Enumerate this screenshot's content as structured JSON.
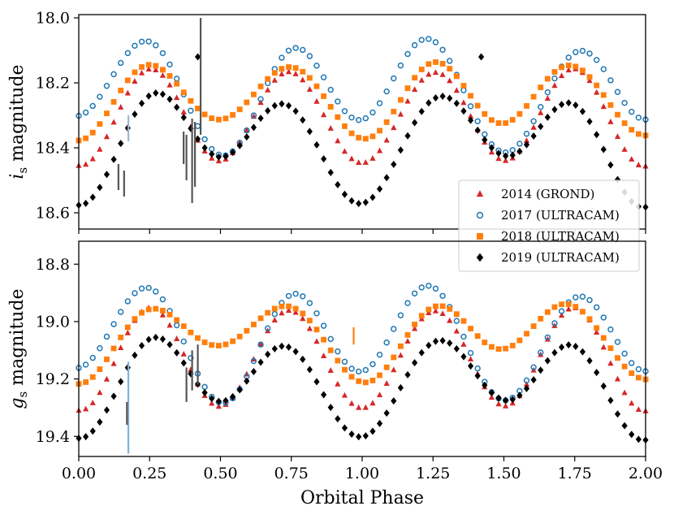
{
  "chart_data": [
    {
      "type": "scatter",
      "panel": "top",
      "ylabel_symbol": "i",
      "ylabel_subscript": "s",
      "ylabel_text": "magnitude",
      "xlim": [
        0.0,
        2.0
      ],
      "ylim": [
        18.65,
        17.99
      ],
      "y_inverted": true,
      "yticks": [
        18.0,
        18.2,
        18.4,
        18.6
      ],
      "ytick_labels": [
        "18.0",
        "18.2",
        "18.4",
        "18.6"
      ],
      "series": [
        {
          "name": "2014 (GROND)",
          "marker": "triangle",
          "color": "#d62728",
          "curve": {
            "base": 18.305,
            "a1": 0.01,
            "a2": 0.14,
            "p1": 0.0,
            "p2": 0.0
          }
        },
        {
          "name": "2017 (ULTRACAM)",
          "marker": "open-circle",
          "color": "#1f77b4",
          "curve": {
            "base": 18.225,
            "a1": -0.06,
            "a2": 0.14,
            "p1": 0.05,
            "p2": 0.0
          }
        },
        {
          "name": "2018 (ULTRACAM)",
          "marker": "square",
          "color": "#ff7f0e",
          "curve": {
            "base": 18.245,
            "a1": 0.025,
            "a2": 0.1,
            "p1": 0.0,
            "p2": 0.0
          }
        },
        {
          "name": "2019 (ULTRACAM)",
          "marker": "diamond",
          "color": "#000000",
          "curve": {
            "base": 18.38,
            "a1": 0.08,
            "a2": 0.12,
            "p1": -0.03,
            "p2": 0.0
          }
        }
      ],
      "error_bars": [
        {
          "x": 0.43,
          "y": 18.18,
          "yerr": 0.18,
          "color": "#555555"
        },
        {
          "x": 0.4,
          "y": 18.44,
          "yerr": 0.13,
          "color": "#555555"
        },
        {
          "x": 0.41,
          "y": 18.42,
          "yerr": 0.1,
          "color": "#555555"
        },
        {
          "x": 0.38,
          "y": 18.43,
          "yerr": 0.07,
          "color": "#555555"
        },
        {
          "x": 0.37,
          "y": 18.4,
          "yerr": 0.05,
          "color": "#555555"
        },
        {
          "x": 0.14,
          "y": 18.49,
          "yerr": 0.04,
          "color": "#555555"
        },
        {
          "x": 0.16,
          "y": 18.51,
          "yerr": 0.04,
          "color": "#555555"
        },
        {
          "x": 0.175,
          "y": 18.34,
          "yerr": 0.04,
          "color": "#9ab7d3"
        }
      ],
      "outliers": [
        {
          "series": 3,
          "x": 0.42,
          "y": 18.12
        },
        {
          "series": 3,
          "x": 1.42,
          "y": 18.12
        }
      ],
      "legend": {
        "position": "lower-right",
        "entries": [
          "2014 (GROND)",
          "2017 (ULTRACAM)",
          "2018 (ULTRACAM)",
          "2019 (ULTRACAM)"
        ]
      }
    },
    {
      "type": "scatter",
      "panel": "bottom",
      "ylabel_symbol": "g",
      "ylabel_subscript": "s",
      "ylabel_text": "magnitude",
      "xlabel": "Orbital Phase",
      "xlim": [
        0.0,
        2.0
      ],
      "ylim": [
        19.47,
        18.72
      ],
      "y_inverted": true,
      "xticks": [
        0.0,
        0.25,
        0.5,
        0.75,
        1.0,
        1.25,
        1.5,
        1.75,
        2.0
      ],
      "xtick_labels": [
        "0.00",
        "0.25",
        "0.50",
        "0.75",
        "1.00",
        "1.25",
        "1.50",
        "1.75",
        "2.00"
      ],
      "yticks": [
        18.8,
        19.0,
        19.2,
        19.4
      ],
      "ytick_labels": [
        "18.8",
        "19.0",
        "19.2",
        "19.4"
      ],
      "series": [
        {
          "name": "2014 (GROND)",
          "marker": "triangle",
          "color": "#d62728",
          "curve": {
            "base": 19.13,
            "a1": 0.01,
            "a2": 0.17,
            "p1": 0.0,
            "p2": 0.0
          }
        },
        {
          "name": "2017 (ULTRACAM)",
          "marker": "open-circle",
          "color": "#1f77b4",
          "curve": {
            "base": 19.06,
            "a1": -0.06,
            "a2": 0.165,
            "p1": 0.05,
            "p2": 0.0
          }
        },
        {
          "name": "2018 (ULTRACAM)",
          "marker": "square",
          "color": "#ff7f0e",
          "curve": {
            "base": 19.05,
            "a1": 0.06,
            "a2": 0.1,
            "p1": 0.02,
            "p2": 0.0
          }
        },
        {
          "name": "2019 (ULTRACAM)",
          "marker": "diamond",
          "color": "#000000",
          "curve": {
            "base": 19.21,
            "a1": 0.07,
            "a2": 0.13,
            "p1": -0.03,
            "p2": 0.0
          }
        }
      ],
      "error_bars": [
        {
          "x": 0.175,
          "y": 19.3,
          "yerr": 0.16,
          "color": "#7fb3dc"
        },
        {
          "x": 0.42,
          "y": 19.15,
          "yerr": 0.07,
          "color": "#555555"
        },
        {
          "x": 0.4,
          "y": 19.17,
          "yerr": 0.07,
          "color": "#555555"
        },
        {
          "x": 0.38,
          "y": 19.22,
          "yerr": 0.06,
          "color": "#555555"
        },
        {
          "x": 0.17,
          "y": 19.32,
          "yerr": 0.04,
          "color": "#555555"
        },
        {
          "x": 0.97,
          "y": 19.05,
          "yerr": 0.03,
          "color": "#ff7f0e"
        }
      ],
      "outliers": []
    }
  ]
}
